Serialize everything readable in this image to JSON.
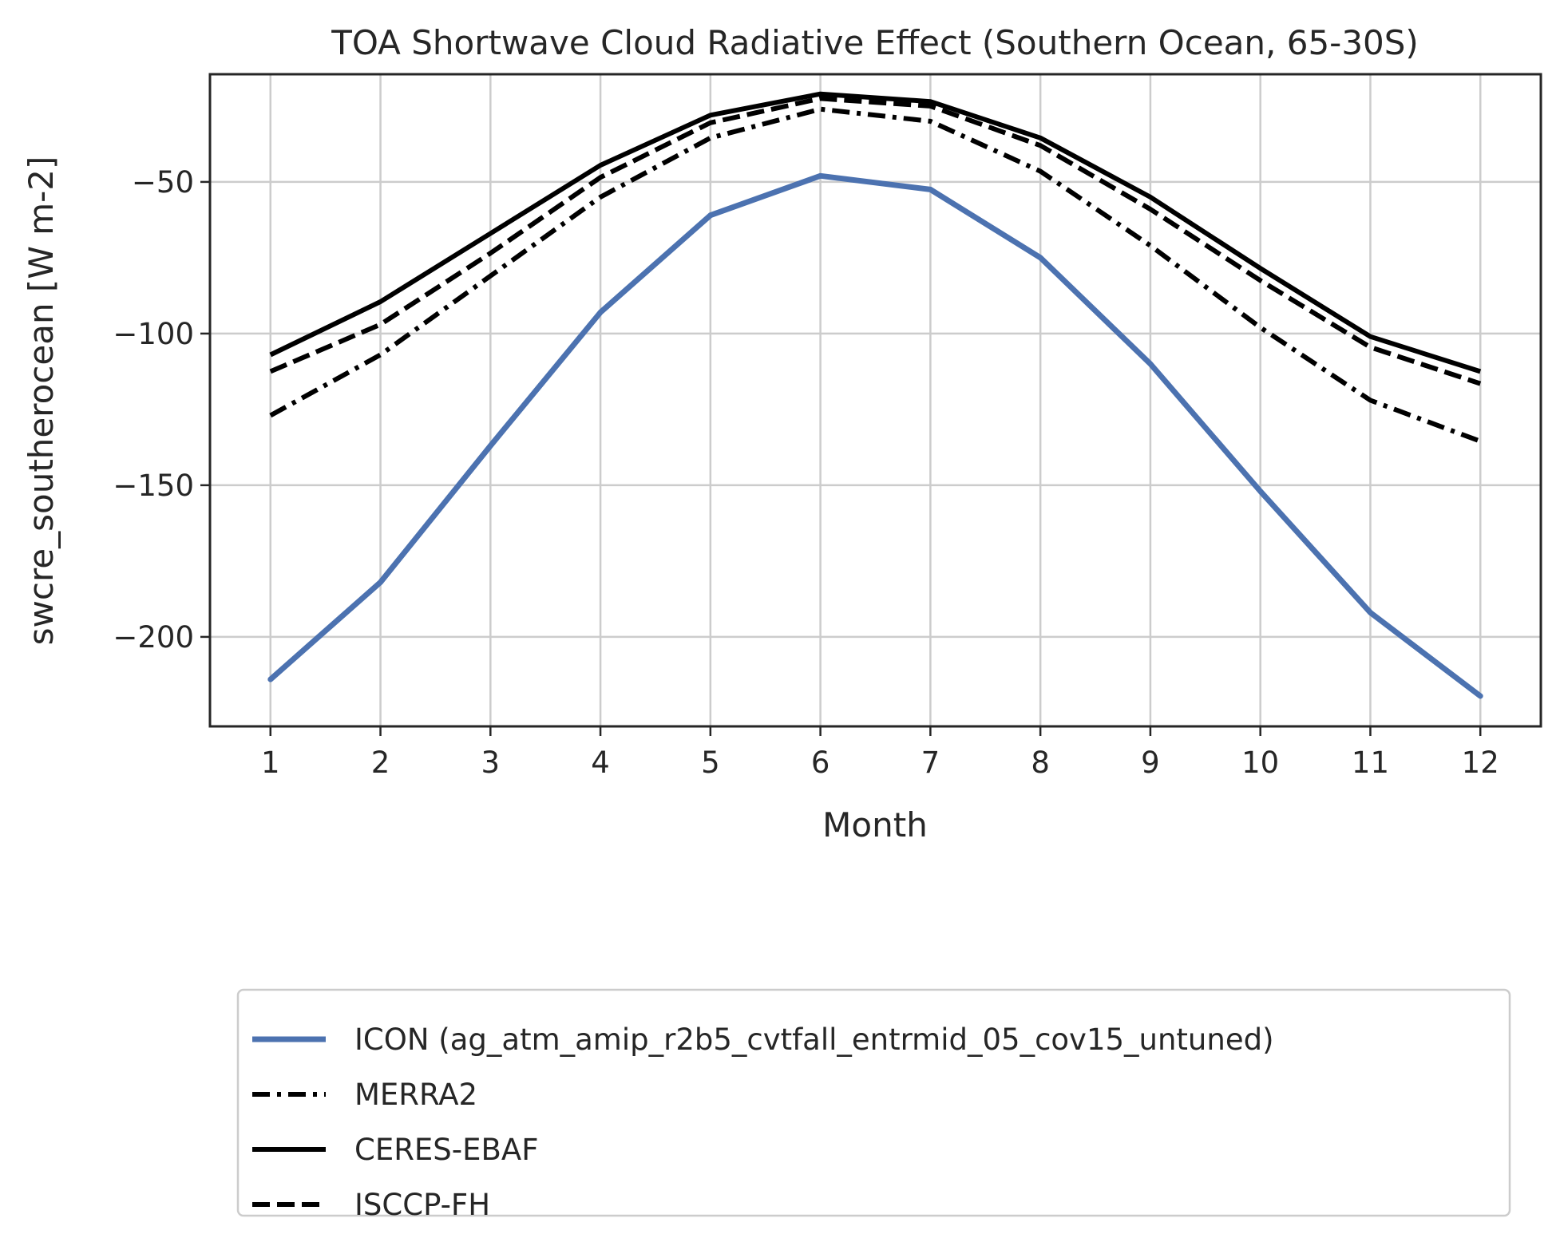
{
  "chart_data": {
    "type": "line",
    "title": "TOA Shortwave Cloud Radiative Effect (Southern Ocean, 65-30S)",
    "xlabel": "Month",
    "ylabel": "swcre_southerocean [W m-2]",
    "x": [
      1,
      2,
      3,
      4,
      5,
      6,
      7,
      8,
      9,
      10,
      11,
      12
    ],
    "xticks": [
      "1",
      "2",
      "3",
      "4",
      "5",
      "6",
      "7",
      "8",
      "9",
      "10",
      "11",
      "12"
    ],
    "yticks": [
      -50,
      -100,
      -150,
      -200
    ],
    "ytick_labels": [
      "−50",
      "−100",
      "−150",
      "−200"
    ],
    "xlim": [
      0.45,
      12.55
    ],
    "ylim": [
      -229.5,
      -14.5
    ],
    "grid": true,
    "legend_position": "bottom",
    "series": [
      {
        "name": "ICON (ag_atm_amip_r2b5_cvtfall_entrmid_05_cov15_untuned)",
        "color": "#4c72b0",
        "style": "solid",
        "values": [
          -214,
          -182,
          -137,
          -93,
          -61,
          -48,
          -52.5,
          -75,
          -110,
          -152,
          -192,
          -219.5
        ]
      },
      {
        "name": "MERRA2",
        "color": "#000000",
        "style": "dashdot",
        "values": [
          -127,
          -107,
          -81,
          -55,
          -35.5,
          -26,
          -30,
          -46.5,
          -71,
          -98,
          -122,
          -135.5
        ]
      },
      {
        "name": "CERES-EBAF",
        "color": "#000000",
        "style": "solid",
        "values": [
          -107,
          -89.5,
          -67,
          -44.5,
          -28,
          -21,
          -23.5,
          -35.5,
          -55,
          -78.5,
          -101,
          -112.5
        ]
      },
      {
        "name": "ISCCP-FH",
        "color": "#000000",
        "style": "dashed",
        "values": [
          -112.5,
          -97,
          -73.5,
          -48.5,
          -30.5,
          -22.5,
          -25,
          -38,
          -59,
          -82.5,
          -104.5,
          -116.5
        ]
      }
    ]
  }
}
